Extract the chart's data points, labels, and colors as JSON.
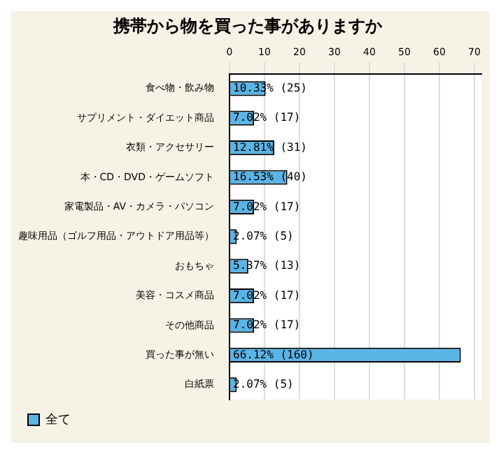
{
  "chart_data": {
    "type": "bar",
    "orientation": "horizontal",
    "title": "携帯から物を買った事がありますか",
    "categories": [
      "食べ物・飲み物",
      "サプリメント・ダイエット商品",
      "衣類・アクセサリー",
      "本・CD・DVD・ゲームソフト",
      "家電製品・AV・カメラ・パソコン",
      "趣味用品（ゴルフ用品・アウトドア用品等）",
      "おもちゃ",
      "美容・コスメ商品",
      "その他商品",
      "買った事が無い",
      "白紙票"
    ],
    "series": [
      {
        "name": "全て",
        "color": "#5ab4e6",
        "values": [
          10.33,
          7.02,
          12.81,
          16.53,
          7.02,
          2.07,
          5.37,
          7.02,
          7.02,
          66.12,
          2.07
        ],
        "value_labels": [
          "10.33% (25)",
          "7.02% (17)",
          "12.81% (31)",
          "16.53% (40)",
          "7.02% (17)",
          "2.07% (5)",
          "5.37% (13)",
          "7.02% (17)",
          "7.02% (17)",
          "66.12% (160)",
          "2.07% (5)"
        ]
      }
    ],
    "xlim": [
      0,
      72
    ],
    "xticks": [
      0,
      10,
      20,
      30,
      40,
      50,
      60,
      70
    ],
    "grid": "x",
    "legend": "bottom left"
  }
}
